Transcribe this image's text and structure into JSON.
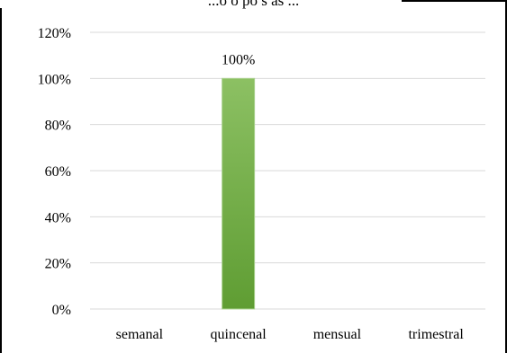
{
  "chart_data": {
    "type": "bar",
    "title": "...o o    po     s     as    ...",
    "categories": [
      "semanal",
      "quincenal",
      "mensual",
      "trimestral"
    ],
    "values": [
      0,
      100,
      0,
      0
    ],
    "data_labels": [
      "",
      "100%",
      "",
      ""
    ],
    "ylim": [
      0,
      120
    ],
    "yticks": [
      0,
      20,
      40,
      60,
      80,
      100,
      120
    ],
    "ytick_labels": [
      "0%",
      "20%",
      "40%",
      "60%",
      "80%",
      "100%",
      "120%"
    ],
    "xlabel": "",
    "ylabel": "",
    "grid": true,
    "legend": "none",
    "colors": {
      "bar_top": "#8cc063",
      "bar_bottom": "#5f9d33",
      "bar_edge": "#a9d18e",
      "grid": "#d9d9d9",
      "frame": "#000000"
    }
  }
}
